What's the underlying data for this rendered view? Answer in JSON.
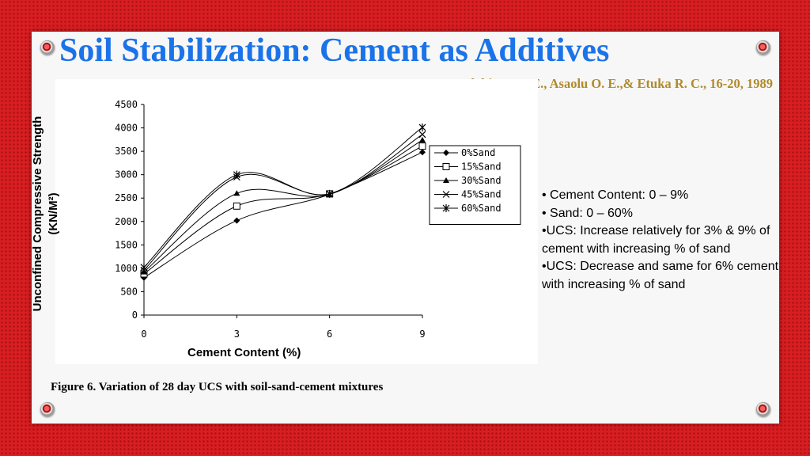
{
  "slide": {
    "title": "Soil Stabilization: Cement as Additives",
    "citation": "Olabiran O. E., Asaolu O. E.,& Etuka R. C., 16-20, 1989",
    "caption": "Figure 6. Variation of 28 day UCS with soil-sand-cement mixtures",
    "bullets": [
      "• Cement Content: 0 – 9%",
      "• Sand: 0 – 60%",
      "•UCS: Increase relatively for 3% & 9% of cement with increasing % of sand",
      "•UCS: Decrease and same for 6% cement with  increasing % of sand"
    ]
  },
  "chart_data": {
    "type": "line",
    "x": [
      0,
      3,
      6,
      9
    ],
    "xlabel": "Cement Content (%)",
    "ylabel_line1": "Unconfined Compressive Strength",
    "ylabel_line2": "(KN/M²)",
    "xlim": [
      0,
      9
    ],
    "ylim": [
      0,
      4500
    ],
    "xticks": [
      "0",
      "3",
      "6",
      "9"
    ],
    "yticks": [
      "0",
      "500",
      "1000",
      "1500",
      "2000",
      "2500",
      "3000",
      "3500",
      "4000",
      "4500"
    ],
    "legend_position": "right",
    "grid": false,
    "series": [
      {
        "name": "0%Sand",
        "marker": "diamond",
        "values": [
          800,
          2020,
          2580,
          3480
        ]
      },
      {
        "name": "15%Sand",
        "marker": "square",
        "values": [
          880,
          2330,
          2590,
          3610
        ]
      },
      {
        "name": "30%Sand",
        "marker": "triangle",
        "values": [
          920,
          2600,
          2580,
          3740
        ]
      },
      {
        "name": "45%Sand",
        "marker": "x",
        "values": [
          960,
          2950,
          2590,
          3860
        ]
      },
      {
        "name": "60%Sand",
        "marker": "star",
        "values": [
          1020,
          3000,
          2590,
          4010
        ]
      }
    ]
  }
}
